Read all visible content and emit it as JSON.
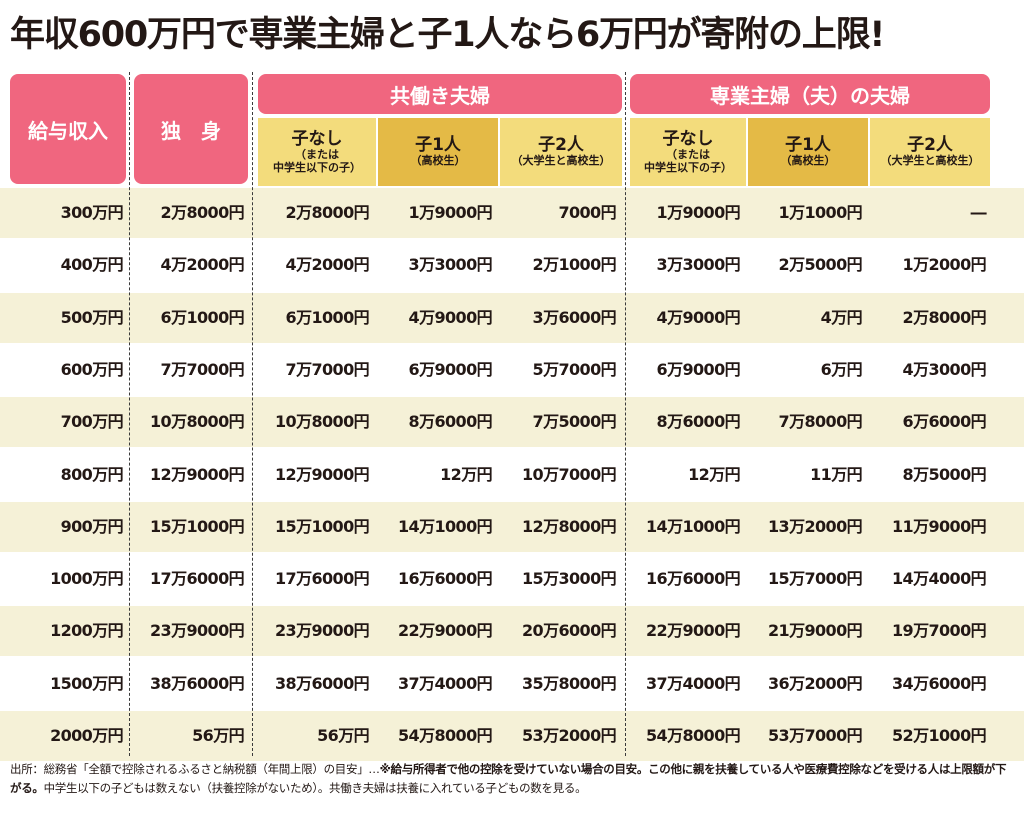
{
  "title": "年収600万円で専業主婦と子1人なら6万円が寄附の上限!",
  "header": {
    "income": "給与収入",
    "single": "独　身",
    "dual_income": "共働き夫婦",
    "single_earner": "専業主婦（夫）の夫婦"
  },
  "subheaders": [
    {
      "main": "子なし",
      "sub1": "（または",
      "sub2": "中学生以下の子）"
    },
    {
      "main": "子1人",
      "sub1": "（高校生）",
      "sub2": ""
    },
    {
      "main": "子2人",
      "sub1": "（大学生と高校生）",
      "sub2": ""
    }
  ],
  "rows": [
    [
      "300万円",
      "2万8000円",
      "2万8000円",
      "1万9000円",
      "7000円",
      "1万9000円",
      "1万1000円",
      "―"
    ],
    [
      "400万円",
      "4万2000円",
      "4万2000円",
      "3万3000円",
      "2万1000円",
      "3万3000円",
      "2万5000円",
      "1万2000円"
    ],
    [
      "500万円",
      "6万1000円",
      "6万1000円",
      "4万9000円",
      "3万6000円",
      "4万9000円",
      "4万円",
      "2万8000円"
    ],
    [
      "600万円",
      "7万7000円",
      "7万7000円",
      "6万9000円",
      "5万7000円",
      "6万9000円",
      "6万円",
      "4万3000円"
    ],
    [
      "700万円",
      "10万8000円",
      "10万8000円",
      "8万6000円",
      "7万5000円",
      "8万6000円",
      "7万8000円",
      "6万6000円"
    ],
    [
      "800万円",
      "12万9000円",
      "12万9000円",
      "12万円",
      "10万7000円",
      "12万円",
      "11万円",
      "8万5000円"
    ],
    [
      "900万円",
      "15万1000円",
      "15万1000円",
      "14万1000円",
      "12万8000円",
      "14万1000円",
      "13万2000円",
      "11万9000円"
    ],
    [
      "1000万円",
      "17万6000円",
      "17万6000円",
      "16万6000円",
      "15万3000円",
      "16万6000円",
      "15万7000円",
      "14万4000円"
    ],
    [
      "1200万円",
      "23万9000円",
      "23万9000円",
      "22万9000円",
      "20万6000円",
      "22万9000円",
      "21万9000円",
      "19万7000円"
    ],
    [
      "1500万円",
      "38万6000円",
      "38万6000円",
      "37万4000円",
      "35万8000円",
      "37万4000円",
      "36万2000円",
      "34万6000円"
    ],
    [
      "2000万円",
      "56万円",
      "56万円",
      "54万8000円",
      "53万2000円",
      "54万8000円",
      "53万7000円",
      "52万1000円"
    ]
  ],
  "footer": {
    "source": "出所：総務省「全額で控除されるふるさと納税額（年間上限）の目安」…",
    "note_bold": "※給与所得者で他の控除を受けていない場合の目安。この他に親を扶養している人や医療費控除などを受ける人は上限額が下がる。",
    "note_rest": "中学生以下の子どもは数えない（扶養控除がないため）。共働き夫婦は扶養に入れている子どもの数を見る。"
  },
  "colors": {
    "pink": "#f0667f",
    "yellow_light": "#f3dc7c",
    "yellow_dark": "#e4ba46",
    "row_shade": "#f5f1d7"
  }
}
